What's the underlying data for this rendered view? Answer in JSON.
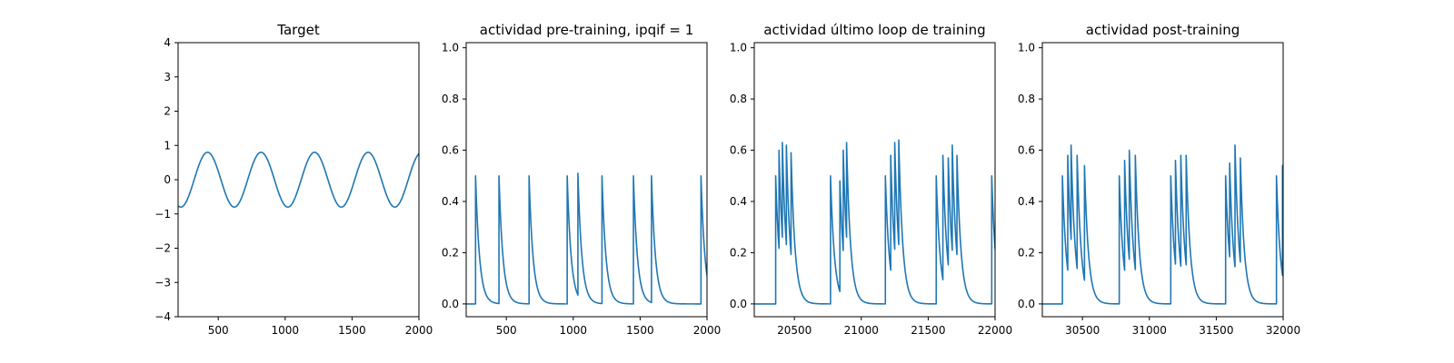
{
  "chart_data": [
    {
      "type": "line",
      "title": "Target",
      "xlim": [
        200,
        2000
      ],
      "ylim": [
        -4,
        4
      ],
      "xticks": [
        500,
        1000,
        1500,
        2000
      ],
      "yticks": [
        -4,
        -3,
        -2,
        -1,
        0,
        1,
        2,
        3,
        4
      ],
      "series": [
        {
          "kind": "sine",
          "amplitude": 0.8,
          "period": 400,
          "peak_x": 420,
          "values_note": ""
        }
      ],
      "color": "#1f77b4"
    },
    {
      "type": "line",
      "title": "actividad pre-training, ipqif = 1",
      "xlim": [
        200,
        2000
      ],
      "ylim": [
        -0.05,
        1.02
      ],
      "xticks": [
        500,
        1000,
        1500,
        2000
      ],
      "yticks": [
        0.0,
        0.2,
        0.4,
        0.6,
        0.8,
        1.0
      ],
      "series": [
        {
          "kind": "spikes",
          "start": 200,
          "end": 2000,
          "decay": 30,
          "spikes": [
            [
              270,
              0.5
            ],
            [
              445,
              0.5
            ],
            [
              670,
              0.5
            ],
            [
              955,
              0.5
            ],
            [
              1035,
              0.51
            ],
            [
              1215,
              0.5
            ],
            [
              1450,
              0.5
            ],
            [
              1585,
              0.5
            ],
            [
              1955,
              0.5
            ]
          ]
        }
      ],
      "color": "#1f77b4"
    },
    {
      "type": "line",
      "title": "actividad último loop de training",
      "xlim": [
        20200,
        22000
      ],
      "ylim": [
        -0.05,
        1.02
      ],
      "xticks": [
        20500,
        21000,
        21500,
        22000
      ],
      "yticks": [
        0.0,
        0.2,
        0.4,
        0.6,
        0.8,
        1.0
      ],
      "series": [
        {
          "kind": "spikes",
          "start": 20200,
          "end": 22000,
          "decay": 30,
          "spikes": [
            [
              20360,
              0.5
            ],
            [
              20385,
              0.6
            ],
            [
              20410,
              0.63
            ],
            [
              20440,
              0.62
            ],
            [
              20475,
              0.59
            ],
            [
              20770,
              0.5
            ],
            [
              20840,
              0.48
            ],
            [
              20865,
              0.6
            ],
            [
              20890,
              0.63
            ],
            [
              21180,
              0.5
            ],
            [
              21220,
              0.58
            ],
            [
              21250,
              0.63
            ],
            [
              21280,
              0.64
            ],
            [
              21560,
              0.5
            ],
            [
              21610,
              0.58
            ],
            [
              21650,
              0.57
            ],
            [
              21680,
              0.62
            ],
            [
              21715,
              0.58
            ],
            [
              21975,
              0.5
            ]
          ]
        }
      ],
      "color": "#1f77b4"
    },
    {
      "type": "line",
      "title": "actividad post-training",
      "xlim": [
        30200,
        32000
      ],
      "ylim": [
        -0.05,
        1.02
      ],
      "xticks": [
        30500,
        31000,
        31500,
        32000
      ],
      "yticks": [
        0.0,
        0.2,
        0.4,
        0.6,
        0.8,
        1.0
      ],
      "series": [
        {
          "kind": "spikes",
          "start": 30200,
          "end": 32000,
          "decay": 30,
          "spikes": [
            [
              30350,
              0.5
            ],
            [
              30390,
              0.58
            ],
            [
              30415,
              0.62
            ],
            [
              30460,
              0.58
            ],
            [
              30515,
              0.54
            ],
            [
              30775,
              0.5
            ],
            [
              30815,
              0.56
            ],
            [
              30850,
              0.6
            ],
            [
              30895,
              0.58
            ],
            [
              31160,
              0.5
            ],
            [
              31195,
              0.56
            ],
            [
              31235,
              0.58
            ],
            [
              31275,
              0.58
            ],
            [
              31570,
              0.5
            ],
            [
              31600,
              0.55
            ],
            [
              31640,
              0.62
            ],
            [
              31680,
              0.57
            ],
            [
              31950,
              0.5
            ],
            [
              31995,
              0.54
            ]
          ]
        }
      ],
      "color": "#1f77b4"
    }
  ]
}
